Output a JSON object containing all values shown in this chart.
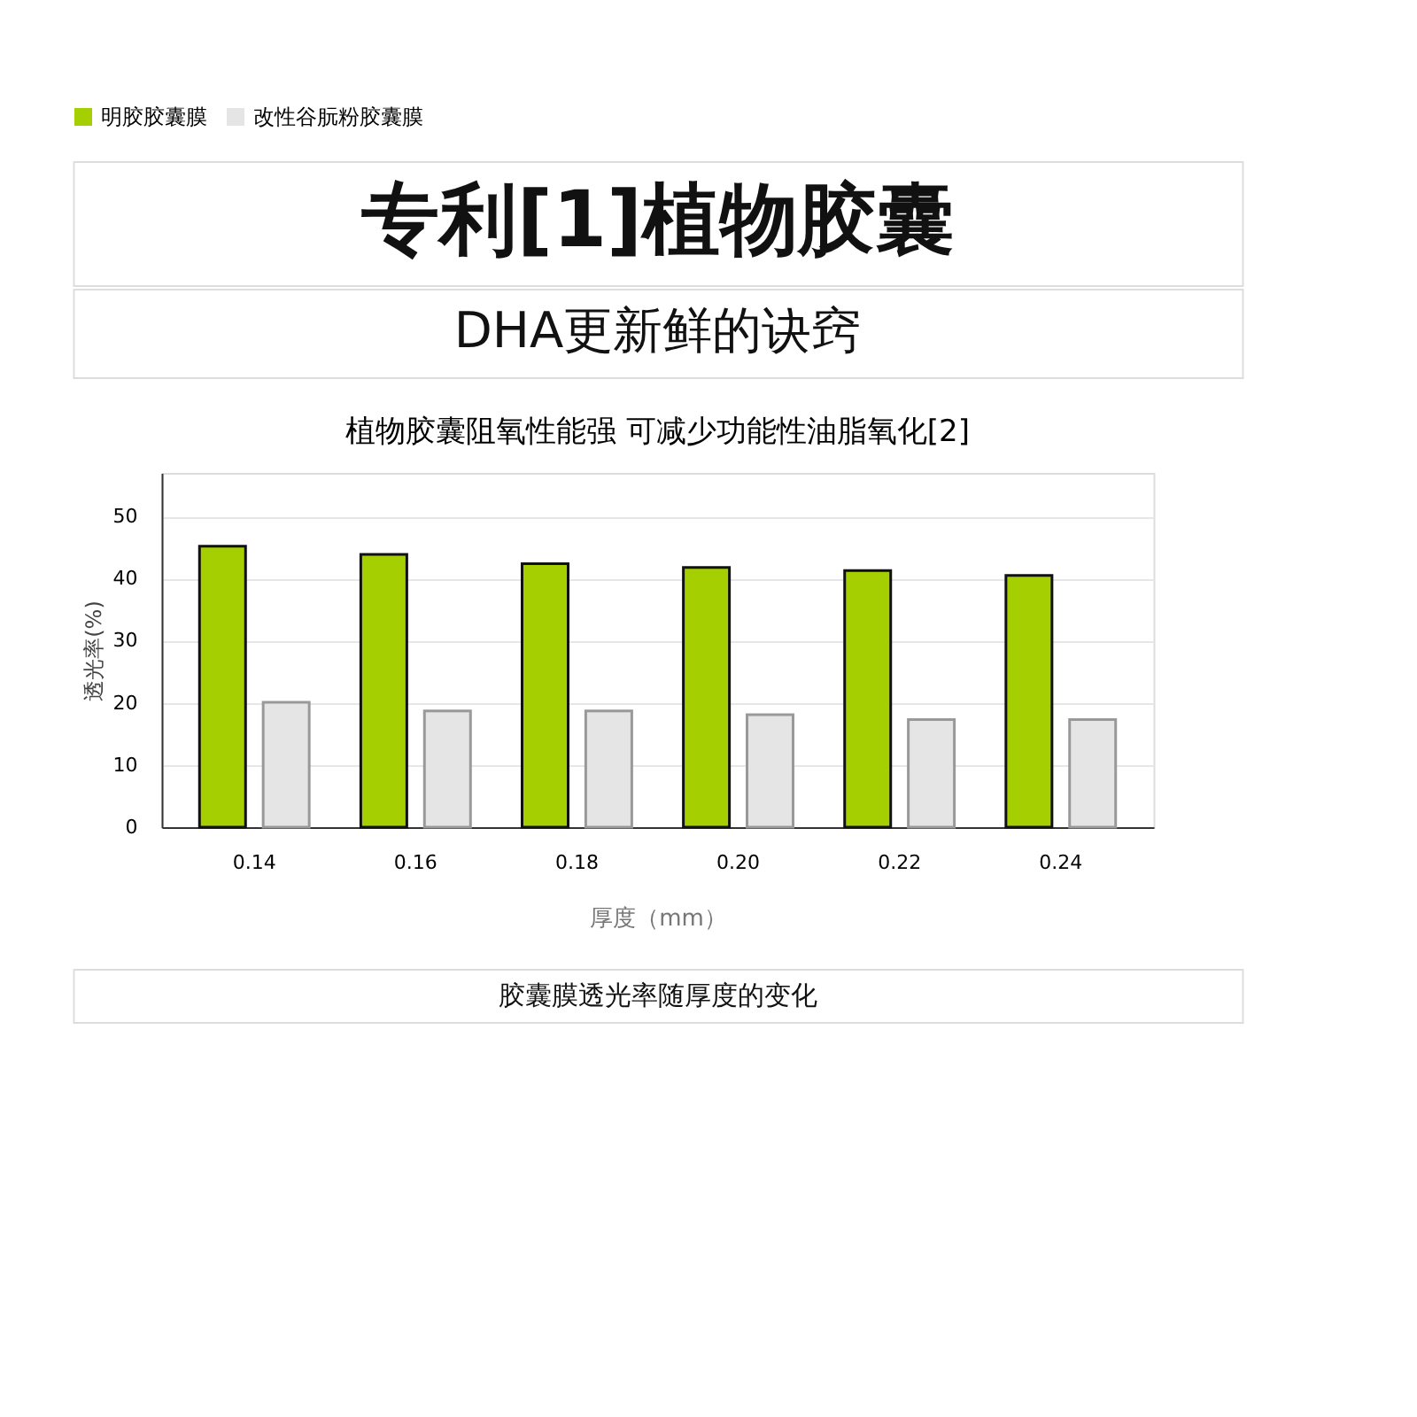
{
  "chart_data": {
    "type": "bar",
    "title": "专利[1]植物胶囊",
    "subtitle": "DHA更新鲜的诀窍",
    "annotations": [
      "植物胶囊阻氧性能强  可减少功能性油脂氧化[2]",
      "胶囊膜透光率随厚度的变化"
    ],
    "xlabel": "厚度（mm）",
    "ylabel": "透光率(%)",
    "categories": [
      "0.14",
      "0.16",
      "0.18",
      "0.20",
      "0.22",
      "0.24"
    ],
    "series": [
      {
        "name": "明胶胶囊膜",
        "color": "#a5cf00",
        "values": [
          45.2,
          43.9,
          42.4,
          41.8,
          41.3,
          40.5
        ]
      },
      {
        "name": "改性谷朊粉胶囊膜",
        "color": "#e5e5e5",
        "values": [
          20.1,
          18.7,
          18.7,
          18.1,
          17.3,
          17.3
        ]
      }
    ],
    "ylim": [
      0,
      57
    ],
    "yticks": [
      0,
      10,
      20,
      30,
      40,
      50
    ],
    "grid": "y",
    "legend": "top"
  }
}
